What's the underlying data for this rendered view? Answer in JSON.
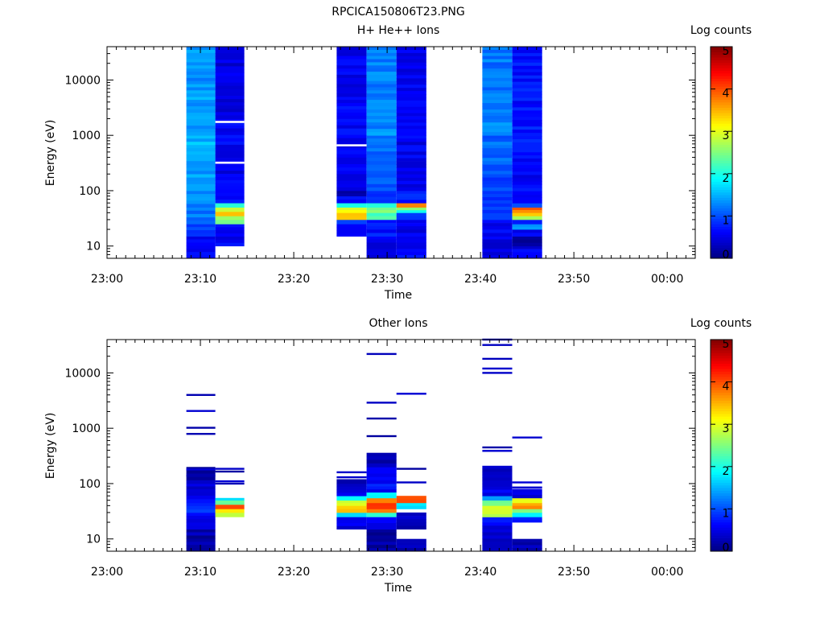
{
  "figure_title": "RPCICA150806T23.PNG",
  "chart_data": [
    {
      "type": "heatmap",
      "title": "H+ He++ Ions",
      "xlabel": "Time",
      "ylabel": "Energy (eV)",
      "x_ticks": [
        "23:00",
        "23:10",
        "23:20",
        "23:30",
        "23:40",
        "23:50",
        "00:00"
      ],
      "y_scale": "log",
      "ylim": [
        6,
        40000
      ],
      "y_ticks": [
        10,
        100,
        1000,
        10000
      ],
      "y_tick_labels": [
        "10",
        "100",
        "1000",
        "10000"
      ],
      "colorbar": {
        "label": "Log counts",
        "range": [
          0,
          5
        ],
        "ticks": [
          "0",
          "1",
          "2",
          "3",
          "4",
          "5"
        ]
      },
      "columns": [
        {
          "start": "23:08.5",
          "end": "23:11.6",
          "bands": [
            [
              6,
              15,
              0.6
            ],
            [
              15,
              25,
              0.9
            ],
            [
              25,
              50,
              1.2
            ],
            [
              50,
              100,
              1.3
            ],
            [
              100,
              300,
              1.4
            ],
            [
              300,
              1000,
              1.5
            ],
            [
              1000,
              5000,
              1.4
            ],
            [
              5000,
              40000,
              1.35
            ]
          ]
        },
        {
          "start": "23:11.6",
          "end": "23:14.7",
          "bands": [
            [
              10,
              25,
              0.6
            ],
            [
              25,
              30,
              2.3
            ],
            [
              30,
              35,
              2.6
            ],
            [
              35,
              42,
              3.6
            ],
            [
              42,
              50,
              3.0
            ],
            [
              50,
              60,
              2.2
            ],
            [
              60,
              70,
              0.9
            ],
            [
              70,
              300,
              0.55
            ],
            [
              300,
              2000,
              0.6
            ],
            [
              2000,
              40000,
              0.45
            ]
          ]
        },
        {
          "start": "23:24.6",
          "end": "23:27.8",
          "bands": [
            [
              15,
              25,
              0.5
            ],
            [
              25,
              30,
              0.9
            ],
            [
              30,
              40,
              3.3
            ],
            [
              40,
              50,
              3.0
            ],
            [
              50,
              60,
              2.1
            ],
            [
              60,
              80,
              0.7
            ],
            [
              80,
              100,
              0.3
            ],
            [
              100,
              600,
              0.55
            ],
            [
              600,
              5000,
              0.6
            ],
            [
              5000,
              40000,
              0.55
            ]
          ]
        },
        {
          "start": "23:27.8",
          "end": "23:31.0",
          "bands": [
            [
              6,
              15,
              0.5
            ],
            [
              15,
              30,
              0.7
            ],
            [
              30,
              40,
              2.2
            ],
            [
              40,
              50,
              2.5
            ],
            [
              50,
              60,
              1.9
            ],
            [
              60,
              100,
              0.9
            ],
            [
              100,
              300,
              1.0
            ],
            [
              300,
              1000,
              1.15
            ],
            [
              1000,
              5000,
              1.3
            ],
            [
              5000,
              40000,
              1.25
            ]
          ]
        },
        {
          "start": "23:31.0",
          "end": "23:34.2",
          "bands": [
            [
              6,
              15,
              0.6
            ],
            [
              15,
              30,
              0.55
            ],
            [
              30,
              40,
              1.0
            ],
            [
              40,
              45,
              2.0
            ],
            [
              45,
              50,
              2.6
            ],
            [
              50,
              60,
              3.7
            ],
            [
              60,
              100,
              0.7
            ],
            [
              100,
              1000,
              0.55
            ],
            [
              1000,
              40000,
              0.55
            ]
          ]
        },
        {
          "start": "23:40.2",
          "end": "23:43.4",
          "bands": [
            [
              6,
              15,
              0.5
            ],
            [
              15,
              30,
              0.6
            ],
            [
              30,
              100,
              0.85
            ],
            [
              100,
              300,
              1.0
            ],
            [
              300,
              1000,
              1.15
            ],
            [
              1000,
              5000,
              1.25
            ],
            [
              5000,
              40000,
              1.2
            ]
          ]
        },
        {
          "start": "23:43.4",
          "end": "23:46.6",
          "bands": [
            [
              6,
              10,
              0.55
            ],
            [
              10,
              15,
              0.25
            ],
            [
              15,
              20,
              0.6
            ],
            [
              20,
              25,
              1.4
            ],
            [
              25,
              30,
              0.9
            ],
            [
              30,
              35,
              2.6
            ],
            [
              35,
              40,
              3.5
            ],
            [
              40,
              50,
              3.8
            ],
            [
              50,
              60,
              0.9
            ],
            [
              60,
              85,
              0.45
            ],
            [
              85,
              500,
              0.6
            ],
            [
              500,
              40000,
              0.7
            ]
          ]
        }
      ],
      "gap_lines": [
        {
          "column": 1,
          "energy": 1750
        },
        {
          "column": 1,
          "energy": 320
        },
        {
          "column": 2,
          "energy": 660
        }
      ]
    },
    {
      "type": "heatmap",
      "title": "Other Ions",
      "xlabel": "Time",
      "ylabel": "Energy (eV)",
      "x_ticks": [
        "23:00",
        "23:10",
        "23:20",
        "23:30",
        "23:40",
        "23:50",
        "00:00"
      ],
      "y_scale": "log",
      "ylim": [
        6,
        40000
      ],
      "y_ticks": [
        10,
        100,
        1000,
        10000
      ],
      "y_tick_labels": [
        "10",
        "100",
        "1000",
        "10000"
      ],
      "colorbar": {
        "label": "Log counts",
        "range": [
          0,
          5
        ],
        "ticks": [
          "0",
          "1",
          "2",
          "3",
          "4",
          "5"
        ]
      },
      "columns": [
        {
          "start": "23:08.5",
          "end": "23:11.6",
          "bands": [
            [
              6,
              15,
              0.2
            ],
            [
              15,
              20,
              0.4
            ],
            [
              20,
              30,
              0.6
            ],
            [
              30,
              45,
              0.8
            ],
            [
              45,
              70,
              0.55
            ],
            [
              70,
              100,
              0.4
            ],
            [
              100,
              200,
              0.25
            ]
          ],
          "lines": [
            4000,
            2050,
            1020,
            790,
            180,
            140
          ]
        },
        {
          "start": "23:11.6",
          "end": "23:14.7",
          "bands": [
            [
              25,
              30,
              2.7
            ],
            [
              30,
              35,
              3.2
            ],
            [
              35,
              42,
              3.9
            ],
            [
              42,
              50,
              2.5
            ],
            [
              50,
              55,
              1.6
            ]
          ],
          "lines": [
            185,
            165,
            110,
            100
          ]
        },
        {
          "start": "23:24.6",
          "end": "23:27.8",
          "bands": [
            [
              15,
              25,
              0.5
            ],
            [
              25,
              30,
              1.7
            ],
            [
              30,
              40,
              3.4
            ],
            [
              40,
              50,
              2.9
            ],
            [
              50,
              60,
              1.9
            ],
            [
              60,
              100,
              0.5
            ],
            [
              100,
              120,
              0.3
            ]
          ],
          "lines": [
            160,
            130
          ]
        },
        {
          "start": "23:27.8",
          "end": "23:31.0",
          "bands": [
            [
              6,
              15,
              0.2
            ],
            [
              15,
              25,
              0.5
            ],
            [
              25,
              30,
              2.0
            ],
            [
              30,
              35,
              3.7
            ],
            [
              35,
              45,
              4.1
            ],
            [
              45,
              55,
              3.6
            ],
            [
              55,
              70,
              1.8
            ],
            [
              70,
              100,
              0.7
            ],
            [
              100,
              200,
              0.5
            ],
            [
              200,
              360,
              0.3
            ]
          ],
          "lines": [
            22000,
            2900,
            1500,
            720
          ]
        },
        {
          "start": "23:31.0",
          "end": "23:34.2",
          "bands": [
            [
              6,
              10,
              0.2
            ],
            [
              15,
              30,
              0.3
            ],
            [
              35,
              45,
              1.8
            ],
            [
              45,
              60,
              3.9
            ]
          ],
          "lines": [
            4200,
            185,
            105
          ]
        },
        {
          "start": "23:40.2",
          "end": "23:43.4",
          "bands": [
            [
              6,
              15,
              0.4
            ],
            [
              15,
              20,
              0.5
            ],
            [
              20,
              25,
              0.7
            ],
            [
              25,
              40,
              2.9
            ],
            [
              40,
              50,
              2.5
            ],
            [
              50,
              60,
              1.5
            ],
            [
              60,
              100,
              0.5
            ],
            [
              100,
              210,
              0.4
            ]
          ],
          "lines": [
            40000,
            32000,
            18000,
            12000,
            10000,
            450,
            390
          ]
        },
        {
          "start": "23:43.4",
          "end": "23:46.6",
          "bands": [
            [
              6,
              10,
              0.2
            ],
            [
              20,
              25,
              0.7
            ],
            [
              25,
              30,
              1.8
            ],
            [
              30,
              35,
              2.6
            ],
            [
              35,
              45,
              3.7
            ],
            [
              45,
              55,
              3.0
            ],
            [
              55,
              80,
              0.5
            ]
          ],
          "lines": [
            680,
            105,
            85
          ]
        }
      ]
    }
  ]
}
